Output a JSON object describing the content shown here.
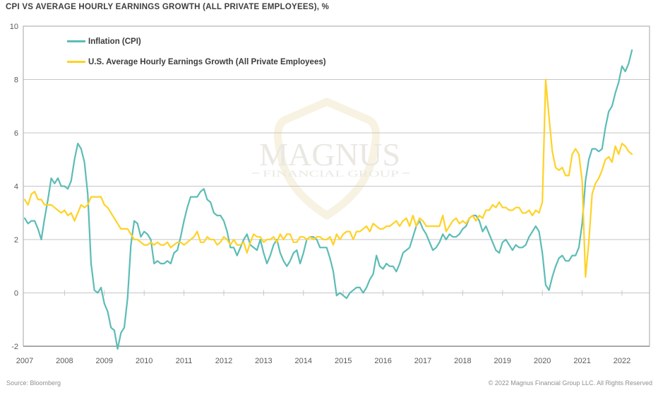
{
  "title": "CPI VS AVERAGE HOURLY EARNINGS GROWTH (ALL PRIVATE EMPLOYEES), %",
  "legend": [
    {
      "label": "Inflation (CPI)",
      "color": "#5cbcb6"
    },
    {
      "label": "U.S. Average Hourly Earnings Growth (All Private Employees)",
      "color": "#ffd226"
    }
  ],
  "watermark": {
    "line1": "MAGNUS",
    "line2": "FINANCIAL GROUP"
  },
  "footer": {
    "source": "Source: Bloomberg",
    "copyright": "© 2022 Magnus Financial Group LLC. All Rights Reserved"
  },
  "colors": {
    "cpi_line": "#5cbcb6",
    "earnings_line": "#ffd226",
    "gridline": "#c6c6c6",
    "plot_border": "#b3b3b3",
    "bottom_axis": "#9f9f9f",
    "watermark_shield": "#f7f2e1",
    "watermark_text": "#e9e8e2"
  },
  "chart_data": {
    "type": "line",
    "title": "CPI VS AVERAGE HOURLY EARNINGS GROWTH (ALL PRIVATE EMPLOYEES), %",
    "x_unit": "monthly",
    "x_start": "2007-03",
    "x_end": "2022-06",
    "x_tick_labels": [
      "2007",
      "2008",
      "2009",
      "2010",
      "2011",
      "2012",
      "2013",
      "2014",
      "2015",
      "2016",
      "2017",
      "2018",
      "2019",
      "2020",
      "2021",
      "2022"
    ],
    "y_ticks": [
      10,
      8,
      6,
      4,
      2,
      0,
      -2
    ],
    "ylim": [
      -2,
      10
    ],
    "grid": "horizontal",
    "legend_position": "top-left-inside",
    "series": [
      {
        "name": "Inflation (CPI)",
        "color": "#5cbcb6",
        "values": [
          2.8,
          2.6,
          2.7,
          2.7,
          2.4,
          2.0,
          2.8,
          3.5,
          4.3,
          4.1,
          4.3,
          4.0,
          4.0,
          3.9,
          4.2,
          5.0,
          5.6,
          5.4,
          4.9,
          3.7,
          1.1,
          0.1,
          0.0,
          0.2,
          -0.4,
          -0.7,
          -1.3,
          -1.4,
          -2.1,
          -1.5,
          -1.3,
          -0.2,
          1.8,
          2.7,
          2.6,
          2.1,
          2.3,
          2.2,
          2.0,
          1.1,
          1.2,
          1.1,
          1.1,
          1.2,
          1.1,
          1.5,
          1.6,
          2.1,
          2.7,
          3.2,
          3.6,
          3.6,
          3.6,
          3.8,
          3.9,
          3.5,
          3.4,
          3.0,
          2.9,
          2.9,
          2.7,
          2.3,
          1.7,
          1.7,
          1.4,
          1.7,
          2.0,
          2.2,
          1.8,
          1.7,
          1.6,
          2.0,
          1.5,
          1.1,
          1.4,
          1.8,
          2.0,
          1.5,
          1.2,
          1.0,
          1.2,
          1.5,
          1.6,
          1.1,
          1.5,
          2.0,
          2.1,
          2.1,
          2.0,
          1.7,
          1.7,
          1.7,
          1.3,
          0.8,
          -0.1,
          0.0,
          -0.1,
          -0.2,
          0.0,
          0.1,
          0.2,
          0.2,
          0.0,
          0.2,
          0.5,
          0.7,
          1.4,
          1.0,
          0.9,
          1.1,
          1.0,
          1.0,
          0.8,
          1.1,
          1.5,
          1.6,
          1.7,
          2.1,
          2.5,
          2.7,
          2.4,
          2.2,
          1.9,
          1.6,
          1.7,
          1.9,
          2.2,
          2.0,
          2.2,
          2.1,
          2.1,
          2.2,
          2.4,
          2.5,
          2.8,
          2.9,
          2.9,
          2.7,
          2.3,
          2.5,
          2.2,
          1.9,
          1.6,
          1.5,
          1.9,
          2.0,
          1.8,
          1.6,
          1.8,
          1.7,
          1.7,
          1.8,
          2.1,
          2.3,
          2.5,
          2.3,
          1.5,
          0.3,
          0.1,
          0.6,
          1.0,
          1.3,
          1.4,
          1.2,
          1.2,
          1.4,
          1.4,
          1.7,
          2.6,
          4.2,
          5.0,
          5.4,
          5.4,
          5.3,
          5.4,
          6.2,
          6.8,
          7.0,
          7.5,
          7.9,
          8.5,
          8.3,
          8.6,
          9.1
        ]
      },
      {
        "name": "U.S. Average Hourly Earnings Growth (All Private Employees)",
        "color": "#ffd226",
        "values": [
          3.5,
          3.3,
          3.7,
          3.8,
          3.5,
          3.5,
          3.3,
          3.3,
          3.3,
          3.2,
          3.1,
          3.0,
          3.1,
          2.9,
          3.0,
          2.7,
          3.0,
          3.3,
          3.2,
          3.3,
          3.6,
          3.6,
          3.6,
          3.6,
          3.3,
          3.2,
          3.0,
          2.8,
          2.6,
          2.4,
          2.4,
          2.4,
          2.2,
          2.0,
          2.0,
          1.9,
          1.8,
          1.8,
          1.9,
          1.8,
          1.9,
          1.8,
          1.8,
          1.9,
          1.7,
          1.8,
          1.9,
          1.9,
          1.8,
          1.9,
          2.0,
          2.1,
          2.3,
          1.9,
          1.9,
          2.1,
          2.0,
          2.0,
          1.8,
          1.9,
          2.1,
          2.0,
          1.8,
          2.0,
          1.8,
          1.8,
          1.9,
          1.5,
          1.9,
          2.2,
          2.1,
          2.1,
          1.9,
          2.0,
          2.0,
          2.1,
          1.9,
          2.2,
          2.0,
          2.2,
          2.2,
          1.9,
          1.9,
          2.1,
          2.1,
          2.0,
          2.1,
          2.0,
          2.1,
          2.1,
          2.0,
          2.0,
          2.1,
          1.8,
          2.2,
          2.0,
          2.2,
          2.3,
          2.3,
          2.0,
          2.3,
          2.3,
          2.4,
          2.5,
          2.3,
          2.6,
          2.5,
          2.4,
          2.4,
          2.5,
          2.5,
          2.6,
          2.7,
          2.5,
          2.7,
          2.8,
          2.5,
          2.9,
          2.5,
          2.8,
          2.7,
          2.5,
          2.5,
          2.5,
          2.5,
          2.5,
          2.9,
          2.3,
          2.5,
          2.7,
          2.8,
          2.6,
          2.7,
          2.6,
          2.8,
          2.9,
          2.7,
          2.9,
          2.8,
          3.1,
          3.1,
          3.3,
          3.2,
          3.4,
          3.2,
          3.2,
          3.1,
          3.1,
          3.2,
          3.2,
          3.0,
          3.0,
          3.1,
          2.9,
          3.1,
          3.0,
          3.4,
          8.0,
          6.6,
          5.3,
          4.7,
          4.6,
          4.7,
          4.4,
          4.4,
          5.2,
          5.4,
          5.2,
          4.2,
          0.6,
          1.9,
          3.7,
          4.1,
          4.3,
          4.6,
          5.0,
          5.1,
          4.9,
          5.5,
          5.2,
          5.6,
          5.5,
          5.3,
          5.2
        ]
      }
    ]
  }
}
